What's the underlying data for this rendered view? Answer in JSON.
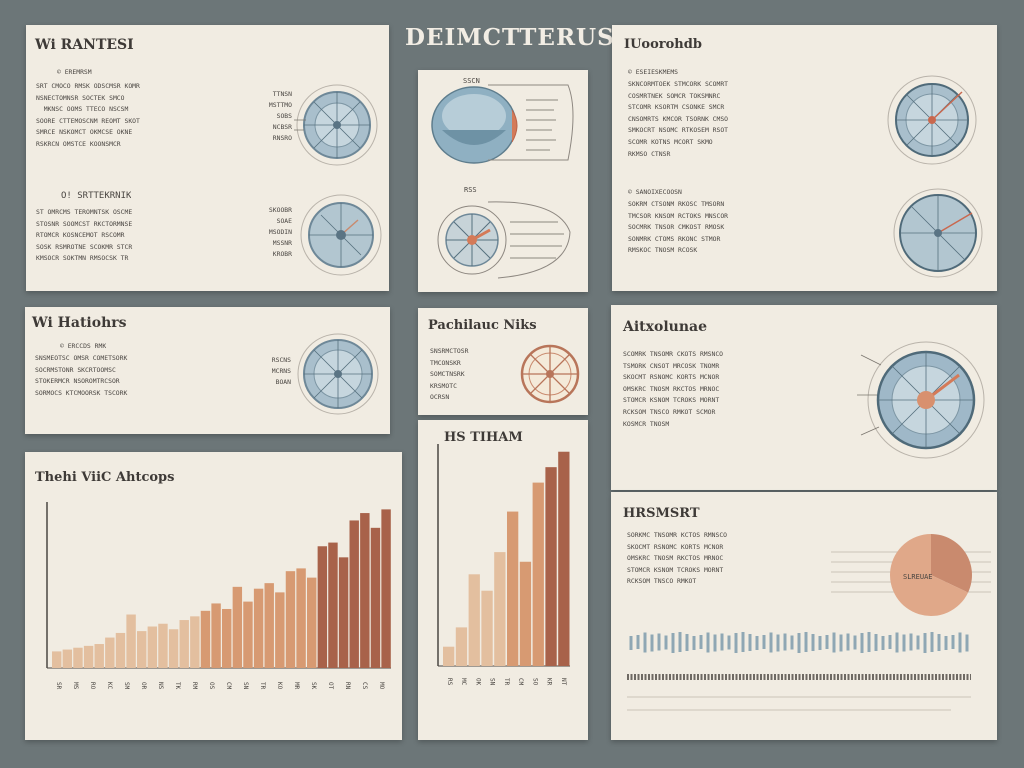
{
  "page_title": "DEIMCTTERUS",
  "colors": {
    "background": "#6c7678",
    "card": "#f1ece2",
    "bar_light": "#e3bf9f",
    "bar_mid": "#d79a72",
    "bar_dark": "#a8624a",
    "dial_blue": "#9fb8c8",
    "dial_accent": "#d47a58"
  },
  "panels": {
    "a": {
      "title": "Wi RANTESI",
      "sub1": "© EREMRSM",
      "sub2": "O! SRTTEKRNIK",
      "body1": "SRT CMOCO RMSK ODSCMSR KOMR\nNSNECTOMNSR SOCTEK SMCO\n  MKNSC OOMS TTECO NSCSM\nSOORE CTTEMOSCNM REOMT SKOT\nSMRCE NSKOMCT OKMCSE OKNE\nRSKRCN OMSTCE KOONSMCR",
      "body2": "ST OMRCMS TEROMNTSK OSCME\nSTOSNR SOOMCST RKCTORMNSE\nRTOMCR KOSNCEMOT RSCOMR\nSOSK RSMROTNE SCOKMR STCR\nKMSOCR SOKTMN RMSOCSK TR",
      "side1": "TTNSN\nMSTTMO\nSOBS\nNCBSR\nRNSRO",
      "side2": "SKOOBR\nSOAE\nMSODIN\nMSSNR\nKROBR"
    },
    "b": {
      "title": "Wi Hatiohrs",
      "sub": "© ERCCDS RMK",
      "body": "SNSMEOTSC OMSR COMETSORK\nSOCRMSTONR SKCRTOOMSC\nSTOKERMCR NSOROMTRCSOR\nSORMOCS KTCMOORSK TSCORK",
      "side": "RSCNS\nMCRNS\nBOAN"
    },
    "c": {
      "title": "Thehi ViiC Ahtcops",
      "x_labels": [
        "SR",
        "MS",
        "RO",
        "KC",
        "SM",
        "OR",
        "NS",
        "TK",
        "RM",
        "OS",
        "CM",
        "SN",
        "TR",
        "KO",
        "MR",
        "SK",
        "OT",
        "RN",
        "CS",
        "MO"
      ]
    },
    "d": {
      "top_label": "SSCN",
      "mid_label": "RSS"
    },
    "e": {
      "title": "Pachilauc Niks",
      "body": "SNSRMCTOSR\nTMCONSKR\nSOMCTNSRK\nKRSMOTC\nOCRSN"
    },
    "f": {
      "title": "HS TIHAM",
      "x_labels": [
        "RS",
        "MC",
        "OK",
        "SN",
        "TR",
        "CM",
        "SO",
        "KR",
        "NT"
      ]
    },
    "g": {
      "title": "IUoorohdb",
      "sub1": "© ESEIESKMEMS",
      "sub2": "© SANOIXECOOSN",
      "body1": "SKNCORMTOEK STMCORK SCOMRT\nCOSMRTNEK SOMCR TOKSMNRC\nSTCOMR KSORTM CSONKE SMCR\nCNSOMRTS KMCOR TSORNK CMSO\nSMKOCRT NSOMC RTKOSEM RSOT\nSCOMR KOTNS MCORT SKMO\nRKMSO CTNSR",
      "body2": "SOKRM CTSONM RKOSC TMSORN\nTMCSOR KNSOM RCTOKS MNSCOR\nSOCMRK TNSOR CMKOST RMOSK\nSONMRK CTOMS RKONC STMOR\nRMSKOC TNOSM RCOSK"
    },
    "h": {
      "title": "Aitxolunae",
      "body": "SCOMRK TNSOMR CKOTS RMSNCO\nTSMORK CNSOT MRCOSK TNOMR\nSKOCMT RSNOMC KORTS MCNOR\nOMSKRC TNOSM RKCTOS MRNOC\nSTOMCR KSNOM TCROKS MORNT\nRCKSOM TNSCO RMKOT SCMOR\nKOSMCR TNOSM"
    },
    "i": {
      "title": "HRSMSRT",
      "body": "SORKMC TNSOMR KCTOS RMNSCO\nSKOCMT RSNOMC KORTS MCNOR\nOMSKRC TNOSM RKCTOS MRNOC\nSTOMCR KSNOM TCROKS MORNT\nRCKSOM TNSCO RMKOT",
      "pie_label": "SLREUAE"
    }
  },
  "chart_data": [
    {
      "type": "bar",
      "title": "Thehi ViiC Ahtcops",
      "values": [
        18,
        20,
        22,
        24,
        26,
        33,
        38,
        58,
        40,
        45,
        48,
        42,
        52,
        56,
        62,
        70,
        64,
        88,
        72,
        86,
        92,
        82,
        105,
        108,
        98,
        132,
        136,
        120,
        160,
        168,
        152,
        172
      ],
      "ylim": [
        0,
        180
      ]
    },
    {
      "type": "bar",
      "title": "HS TIHAM",
      "values": [
        20,
        40,
        95,
        78,
        118,
        160,
        108,
        190,
        206,
        222
      ],
      "ylim": [
        0,
        230
      ]
    },
    {
      "type": "pie",
      "values": [
        32,
        68
      ]
    }
  ]
}
